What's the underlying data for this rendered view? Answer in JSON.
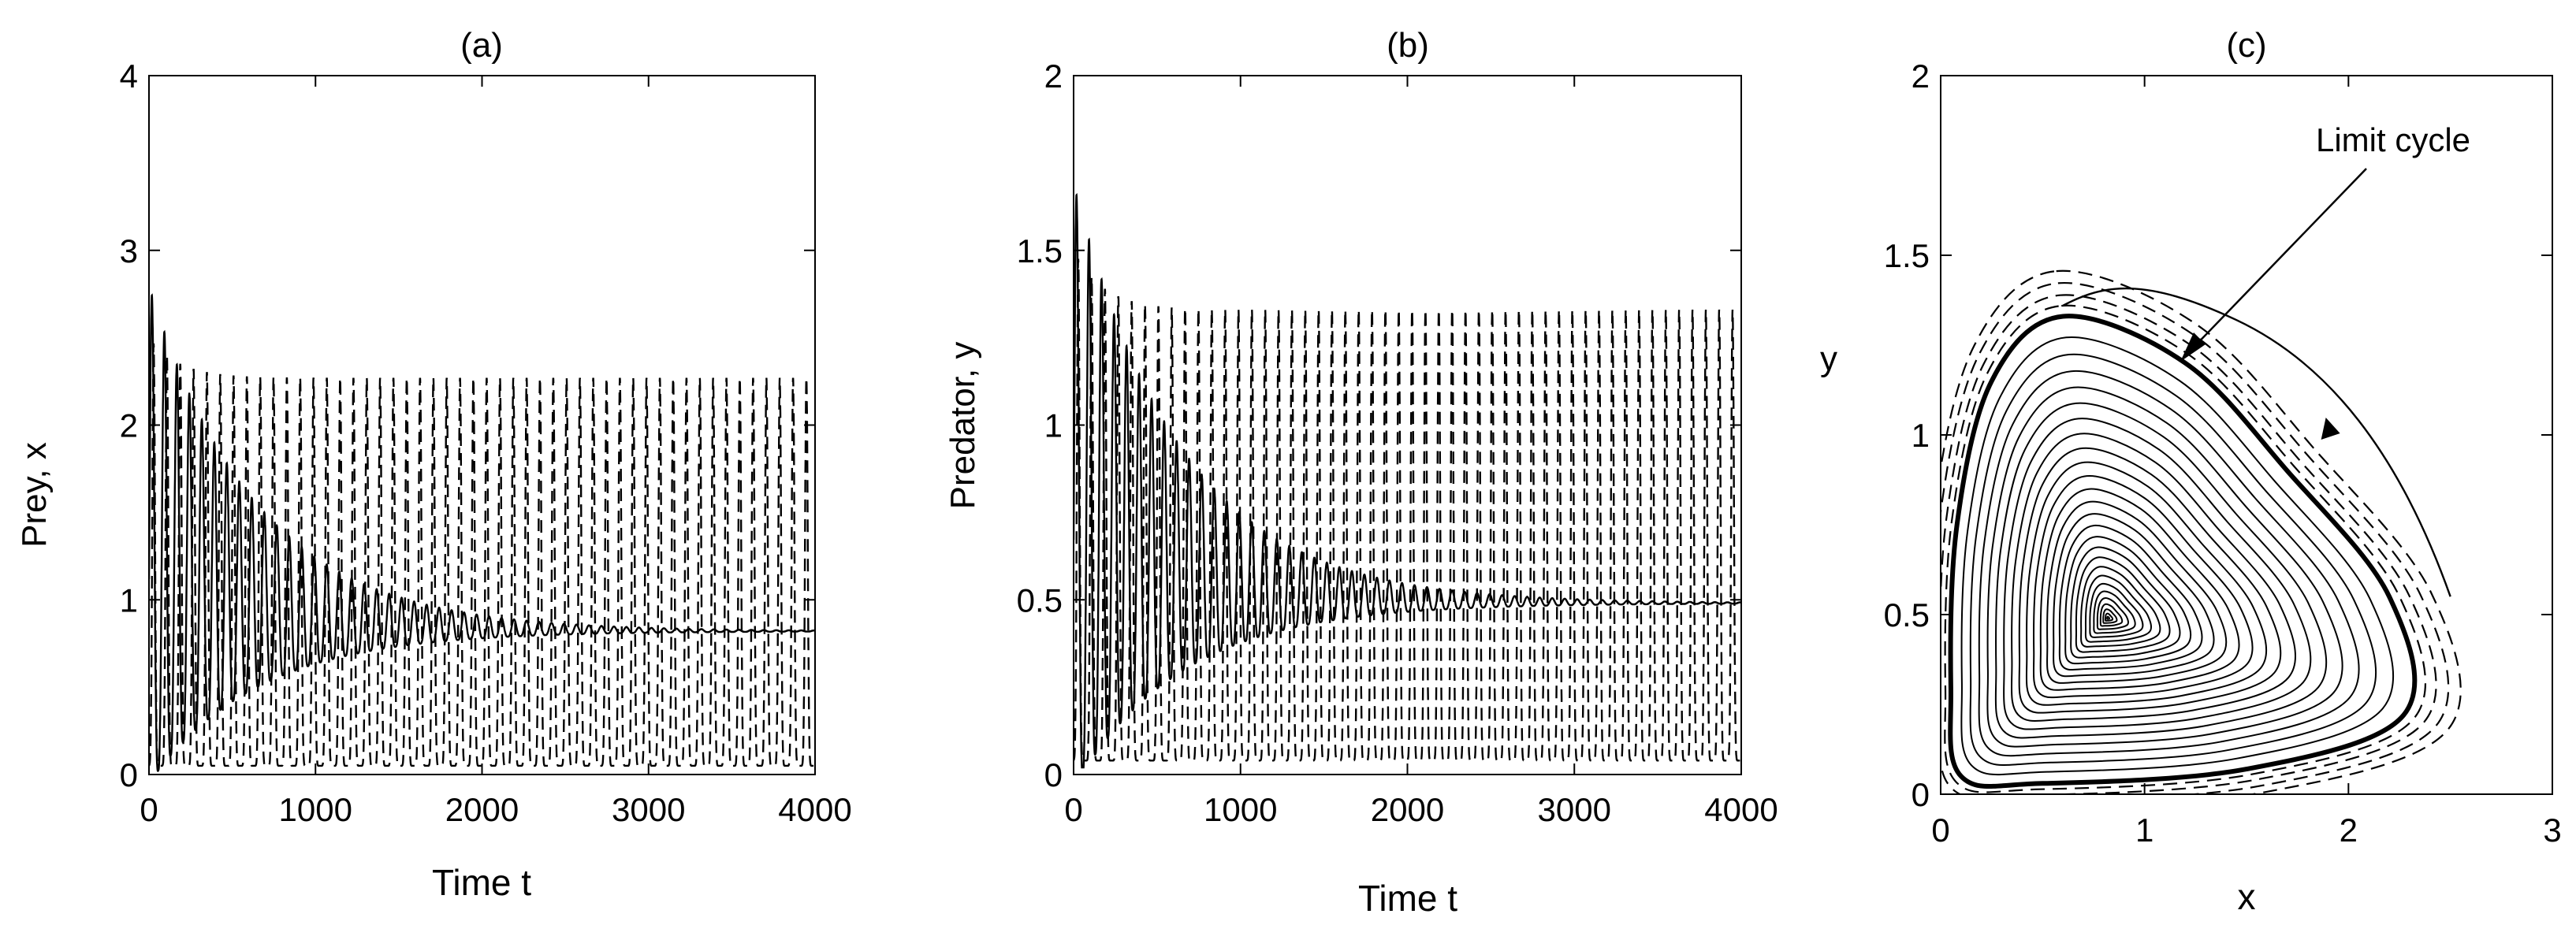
{
  "chart_data": [
    {
      "panel": "a",
      "type": "line",
      "title": "(a)",
      "xlabel": "Time t",
      "ylabel": "Prey, x",
      "xlim": [
        0,
        4000
      ],
      "ylim": [
        0,
        4
      ],
      "xticks": [
        0,
        1000,
        2000,
        3000,
        4000
      ],
      "yticks": [
        0,
        1,
        2,
        3,
        4
      ],
      "series": [
        {
          "style": "dashed",
          "description": "sustained oscillation",
          "period": 80,
          "min": 0.05,
          "max": 2.27,
          "initial_max": 2.5
        },
        {
          "style": "solid",
          "description": "damped oscillation",
          "equilibrium": 0.82,
          "initial_peak": 2.4,
          "damping_time": 650,
          "period": 75
        }
      ]
    },
    {
      "panel": "b",
      "type": "line",
      "title": "(b)",
      "xlabel": "Time t",
      "ylabel": "Predator, y",
      "xlim": [
        0,
        4000
      ],
      "ylim": [
        0,
        2
      ],
      "xticks": [
        0,
        1000,
        2000,
        3000,
        4000
      ],
      "yticks": [
        0,
        0.5,
        1,
        1.5,
        2
      ],
      "series": [
        {
          "style": "dashed",
          "description": "sustained oscillation",
          "period": 80,
          "min": 0.04,
          "max": 1.33,
          "initial_max": 1.5
        },
        {
          "style": "solid",
          "description": "damped oscillation",
          "equilibrium": 0.49,
          "initial_peak": 1.45,
          "damping_time": 650,
          "period": 75
        }
      ]
    },
    {
      "panel": "c",
      "type": "phase",
      "title": "(c)",
      "xlabel": "x",
      "ylabel": "y",
      "xlim": [
        0,
        3
      ],
      "ylim": [
        0,
        2
      ],
      "xticks": [
        0,
        1,
        2,
        3
      ],
      "yticks": [
        0,
        0.5,
        1,
        1.5,
        2
      ],
      "equilibrium": [
        0.82,
        0.49
      ],
      "limit_cycle": [
        [
          0.6,
          1.33
        ],
        [
          1.2,
          1.2
        ],
        [
          1.7,
          0.9
        ],
        [
          2.2,
          0.55
        ],
        [
          2.27,
          0.22
        ],
        [
          1.5,
          0.07
        ],
        [
          0.5,
          0.03
        ],
        [
          0.1,
          0.05
        ],
        [
          0.05,
          0.3
        ],
        [
          0.08,
          0.75
        ],
        [
          0.25,
          1.15
        ]
      ],
      "outer_trajectory_start": [
        2.5,
        0.55
      ],
      "annotation": "Limit cycle"
    }
  ]
}
